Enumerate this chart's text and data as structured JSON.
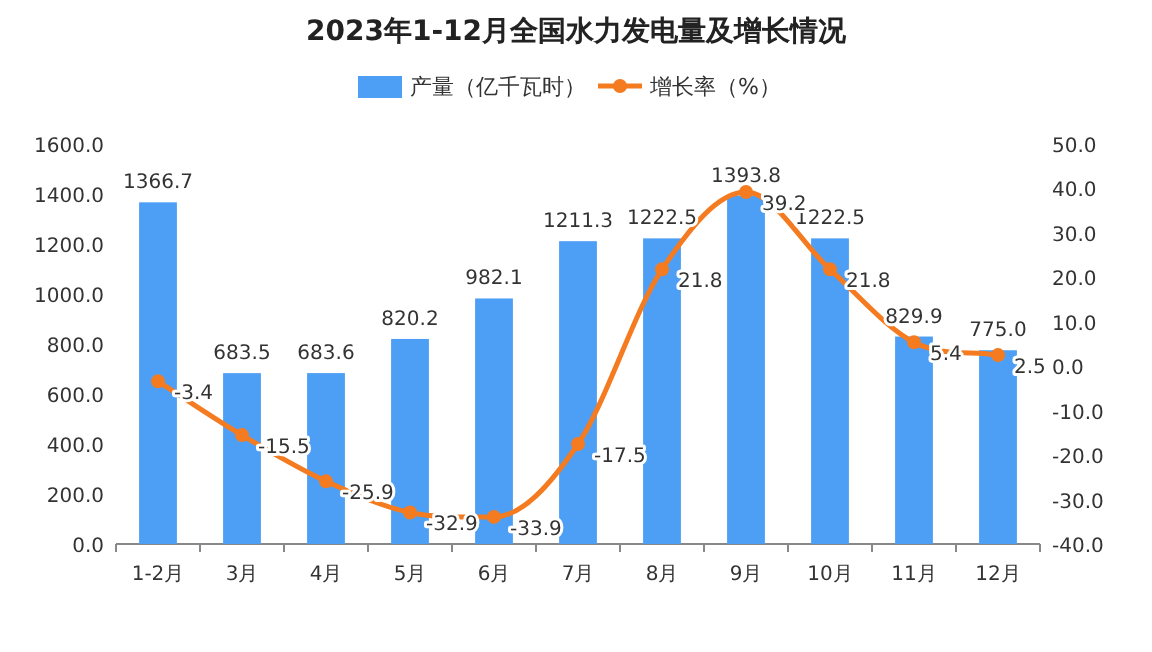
{
  "chart_data": {
    "type": "bar",
    "title": "2023年1-12月全国水力发电量及增长情况",
    "categories": [
      "1-2月",
      "3月",
      "4月",
      "5月",
      "6月",
      "7月",
      "8月",
      "9月",
      "10月",
      "11月",
      "12月"
    ],
    "series": [
      {
        "name": "产量（亿千瓦时）",
        "color": "#4d9ff5",
        "values": [
          1366.7,
          683.5,
          683.6,
          820.2,
          982.1,
          1211.3,
          1222.5,
          1393.8,
          1222.5,
          829.9,
          775.0
        ],
        "value_labels": [
          "1366.7",
          "683.5",
          "683.6",
          "820.2",
          "982.1",
          "1211.3",
          "1222.5",
          "1393.8",
          "1222.5",
          "829.9",
          "775.0"
        ]
      },
      {
        "name": "增长率（%）",
        "type": "line",
        "axis": "y2",
        "color": "#f47b20",
        "values": [
          -3.4,
          -15.5,
          -25.9,
          -32.9,
          -33.9,
          -17.5,
          21.8,
          39.2,
          21.8,
          5.4,
          2.5
        ],
        "value_labels": [
          "-3.4",
          "-15.5",
          "-25.9",
          "-32.9",
          "-33.9",
          "-17.5",
          "21.8",
          "39.2",
          "21.8",
          "5.4",
          "2.5"
        ]
      }
    ],
    "ylim": [
      0,
      1600
    ],
    "yticks": [
      {
        "value": 0,
        "label": "0.0"
      },
      {
        "value": 200,
        "label": "200.0"
      },
      {
        "value": 400,
        "label": "400.0"
      },
      {
        "value": 600,
        "label": "600.0"
      },
      {
        "value": 800,
        "label": "800.0"
      },
      {
        "value": 1000,
        "label": "1000.0"
      },
      {
        "value": 1200,
        "label": "1200.0"
      },
      {
        "value": 1400,
        "label": "1400.0"
      },
      {
        "value": 1600,
        "label": "1600.0"
      }
    ],
    "y2lim": [
      -40,
      50
    ],
    "y2ticks": [
      {
        "value": -40,
        "label": "-40.0"
      },
      {
        "value": -30,
        "label": "-30.0"
      },
      {
        "value": -20,
        "label": "-20.0"
      },
      {
        "value": -10,
        "label": "-10.0"
      },
      {
        "value": 0,
        "label": "0.0"
      },
      {
        "value": 10,
        "label": "10.0"
      },
      {
        "value": 20,
        "label": "20.0"
      },
      {
        "value": 30,
        "label": "30.0"
      },
      {
        "value": 40,
        "label": "40.0"
      },
      {
        "value": 50,
        "label": "50.0"
      }
    ],
    "legend": "top",
    "marker": "circle"
  }
}
